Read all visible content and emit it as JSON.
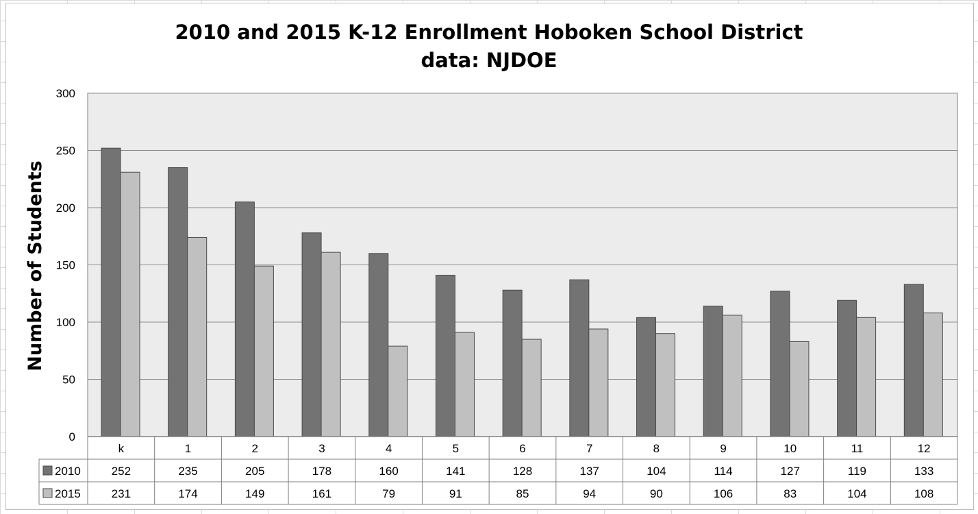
{
  "chart_data": {
    "type": "bar",
    "title": "2010 and 2015 K-12 Enrollment Hoboken School District",
    "subtitle": "data: NJDOE",
    "xlabel": "",
    "ylabel": "Number of Students",
    "ylim": [
      0,
      300
    ],
    "yticks": [
      0,
      50,
      100,
      150,
      200,
      250,
      300
    ],
    "grid": true,
    "legend": "data-table-left",
    "categories": [
      "k",
      "1",
      "2",
      "3",
      "4",
      "5",
      "6",
      "7",
      "8",
      "9",
      "10",
      "11",
      "12"
    ],
    "series": [
      {
        "name": "2010",
        "color": "#737373",
        "values": [
          252,
          235,
          205,
          178,
          160,
          141,
          128,
          137,
          104,
          114,
          127,
          119,
          133
        ]
      },
      {
        "name": "2015",
        "color": "#c0c0c0",
        "values": [
          231,
          174,
          149,
          161,
          79,
          91,
          85,
          94,
          90,
          106,
          83,
          104,
          108
        ]
      }
    ],
    "plot_background": "#ececec",
    "gridline_color": "#8c8c8c"
  }
}
